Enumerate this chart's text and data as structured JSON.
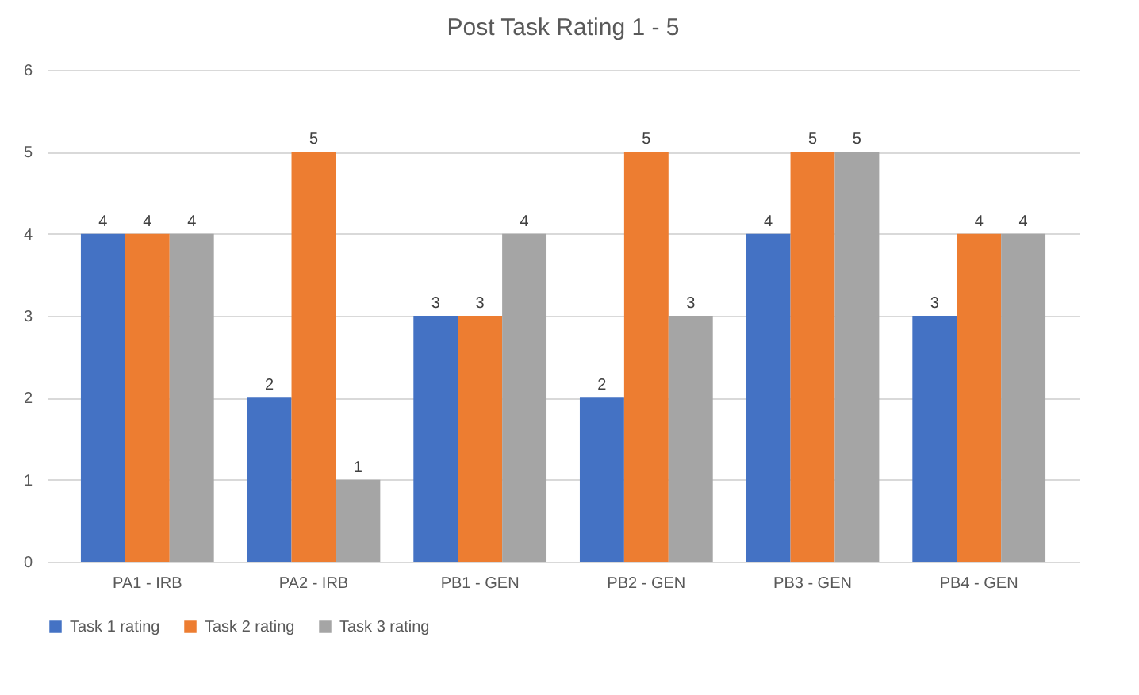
{
  "chart_data": {
    "type": "bar",
    "title": "Post Task Rating 1 - 5",
    "categories": [
      "PA1 - IRB",
      "PA2 - IRB",
      "PB1 - GEN",
      "PB2 - GEN",
      "PB3 - GEN",
      "PB4 - GEN"
    ],
    "series": [
      {
        "name": "Task 1 rating",
        "color": "#4472c4",
        "values": [
          4,
          2,
          3,
          2,
          4,
          3
        ]
      },
      {
        "name": "Task 2 rating",
        "color": "#ed7d31",
        "values": [
          4,
          5,
          3,
          5,
          5,
          4
        ]
      },
      {
        "name": "Task 3 rating",
        "color": "#a5a5a5",
        "values": [
          4,
          1,
          4,
          3,
          5,
          4
        ]
      }
    ],
    "ylim": [
      0,
      6
    ],
    "yticks": [
      0,
      1,
      2,
      3,
      4,
      5,
      6
    ],
    "grid": "y",
    "legend": "bottom",
    "data_labels": true
  }
}
